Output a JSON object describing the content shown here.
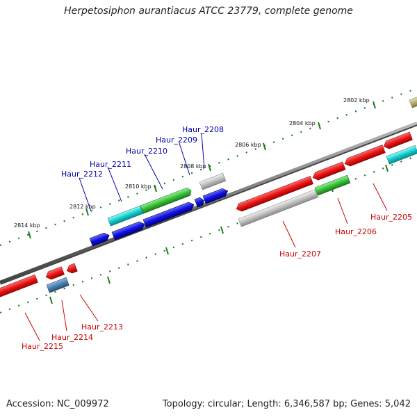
{
  "title": "Herpetosiphon aurantiacus ATCC 23779, complete genome",
  "footer": {
    "accession": "Accession: NC_009972",
    "summary": "Topology: circular; Length: 6,346,587 bp; Genes: 5,042"
  },
  "kbp_labels": [
    "2802 kbp",
    "2804 kbp",
    "2806 kbp",
    "2808 kbp",
    "2810 kbp",
    "2812 kbp",
    "2814 kbp"
  ],
  "genes_top": [
    "Haur_2208",
    "Haur_2209",
    "Haur_2210",
    "Haur_2211",
    "Haur_2212"
  ],
  "genes_bottom": [
    "Haur_2205",
    "Haur_2206",
    "Haur_2207",
    "Haur_2213",
    "Haur_2214",
    "Haur_2215"
  ],
  "colors": {
    "top_label": "#0000aa",
    "bottom_label": "#cc0000",
    "tick": "#1a7a1a",
    "backbone": "#777777",
    "red": "#e81515",
    "green": "#38c038",
    "blue": "#1010e0",
    "cyan": "#10cfcf",
    "gray": "#c0c0c0",
    "steel": "#4a80b0",
    "olive": "#b8b070"
  }
}
